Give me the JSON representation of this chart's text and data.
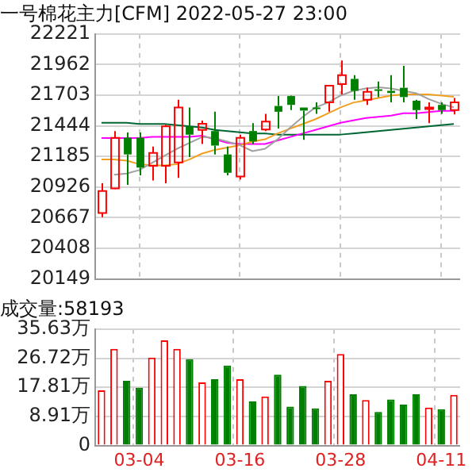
{
  "chart_data": [
    {
      "type": "candlestick",
      "title": "一号棉花主力[CFM] 2022-05-27 23:00",
      "ohlc": [
        [
          20707,
          20959,
          20672,
          20892
        ],
        [
          20915,
          21400,
          20910,
          21343
        ],
        [
          21343,
          21387,
          20945,
          21202
        ],
        [
          21343,
          21387,
          21025,
          21091
        ],
        [
          21105,
          21268,
          20981,
          21215
        ],
        [
          21105,
          21453,
          20959,
          21440
        ],
        [
          21135,
          21665,
          21003,
          21599
        ],
        [
          21435,
          21599,
          21180,
          21369
        ],
        [
          21409,
          21488,
          21290,
          21462
        ],
        [
          21400,
          21563,
          21202,
          21277
        ],
        [
          21202,
          21268,
          21025,
          21047
        ],
        [
          21016,
          21369,
          20990,
          21343
        ],
        [
          21400,
          21466,
          21290,
          21312
        ],
        [
          21413,
          21546,
          21400,
          21480
        ],
        [
          21612,
          21696,
          21422,
          21563
        ],
        [
          21696,
          21700,
          21577,
          21621
        ],
        [
          21599,
          21599,
          21325,
          21573
        ],
        [
          21599,
          21643,
          21546,
          21590
        ],
        [
          21643,
          21790,
          21563,
          21784
        ],
        [
          21797,
          21996,
          21709,
          21872
        ],
        [
          21841,
          21872,
          21665,
          21740
        ],
        [
          21665,
          21766,
          21621,
          21731
        ],
        [
          21753,
          21819,
          21687,
          21744
        ],
        [
          21740,
          21872,
          21643,
          21722
        ],
        [
          21766,
          21952,
          21643,
          21687
        ],
        [
          21656,
          21665,
          21502,
          21577
        ],
        [
          21590,
          21643,
          21466,
          21599
        ],
        [
          21621,
          21643,
          21546,
          21577
        ],
        [
          21577,
          21680,
          21540,
          21643
        ]
      ],
      "colors": [
        "#ff0000",
        "#ff0000",
        "#008000",
        "#008000",
        "#ff0000",
        "#ff0000",
        "#ff0000",
        "#008000",
        "#ff0000",
        "#008000",
        "#008000",
        "#ff0000",
        "#008000",
        "#ff0000",
        "#008000",
        "#008000",
        "#008000",
        "#008000",
        "#ff0000",
        "#ff0000",
        "#008000",
        "#ff0000",
        "#008000",
        "#008000",
        "#008000",
        "#008000",
        "#ff0000",
        "#008000",
        "#ff0000"
      ],
      "series": [
        {
          "type": "line",
          "color": "#a0a0a0",
          "values": [
            null,
            21030,
            21040,
            21070,
            21130,
            21190,
            21250,
            21300,
            21350,
            21340,
            21310,
            21280,
            21230,
            21250,
            21330,
            21430,
            21520,
            21600,
            21640,
            21700,
            21740,
            21760,
            21770,
            21760,
            21740,
            21720,
            21670,
            21630,
            21600
          ]
        },
        {
          "type": "line",
          "color": "#f0a020",
          "values": [
            21160,
            21160,
            21150,
            21120,
            21110,
            21110,
            21120,
            21160,
            21210,
            21240,
            21260,
            21280,
            21310,
            21330,
            21380,
            21420,
            21460,
            21500,
            21550,
            21600,
            21640,
            21660,
            21680,
            21700,
            21710,
            21710,
            21710,
            21700,
            21690
          ]
        },
        {
          "type": "line",
          "color": "#ff00ff",
          "values": [
            21340,
            21340,
            21340,
            21340,
            21350,
            21350,
            21350,
            21350,
            21360,
            21330,
            21300,
            21290,
            21290,
            21290,
            21320,
            21350,
            21380,
            21410,
            21440,
            21470,
            21490,
            21510,
            21520,
            21530,
            21550,
            21550,
            21560,
            21570,
            21570
          ]
        },
        {
          "type": "line",
          "color": "#006633",
          "values": [
            21470,
            21470,
            21470,
            21460,
            21460,
            21460,
            21450,
            21440,
            21430,
            21410,
            21400,
            21390,
            21380,
            21380,
            21370,
            21370,
            21370,
            21370,
            21370,
            21370,
            21380,
            21390,
            21400,
            21410,
            21420,
            21430,
            21440,
            21450,
            21460
          ]
        }
      ],
      "ylim": [
        20149,
        22221
      ],
      "yticks": [
        20149,
        20408,
        20667,
        20926,
        21185,
        21444,
        21703,
        21962,
        22221
      ],
      "grid": true,
      "tick_labels": "y",
      "marker": "none"
    },
    {
      "type": "bar",
      "title": "成交量:58193",
      "categories": [
        null,
        null,
        null,
        "03-04",
        null,
        null,
        null,
        null,
        null,
        null,
        null,
        "03-16",
        null,
        null,
        null,
        null,
        null,
        null,
        null,
        "03-28",
        null,
        null,
        null,
        null,
        null,
        null,
        null,
        "04-11",
        null
      ],
      "values": [
        16.9,
        29.6,
        19.8,
        17.7,
        26.9,
        32.2,
        29.6,
        26.4,
        19.3,
        20.3,
        24.5,
        20.3,
        13.5,
        15.0,
        21.7,
        11.9,
        18.2,
        11.4,
        19.8,
        28.0,
        15.7,
        13.9,
        10.3,
        14.1,
        12.5,
        15.7,
        11.6,
        11.1,
        15.5
      ],
      "colors": [
        "#ff0000",
        "#ff0000",
        "#008000",
        "#008000",
        "#ff0000",
        "#ff0000",
        "#ff0000",
        "#008000",
        "#ff0000",
        "#008000",
        "#008000",
        "#ff0000",
        "#008000",
        "#ff0000",
        "#008000",
        "#008000",
        "#008000",
        "#008000",
        "#ff0000",
        "#ff0000",
        "#008000",
        "#ff0000",
        "#008000",
        "#008000",
        "#008000",
        "#008000",
        "#ff0000",
        "#008000",
        "#ff0000"
      ],
      "ylim": [
        0,
        35.63
      ],
      "yticks": [
        0,
        {
          "value": 8.91,
          "label": "8.91万"
        },
        {
          "value": 17.81,
          "label": "17.81万"
        },
        {
          "value": 26.72,
          "label": "26.72万"
        },
        {
          "value": 35.63,
          "label": "35.63万"
        }
      ],
      "grid": true
    }
  ]
}
